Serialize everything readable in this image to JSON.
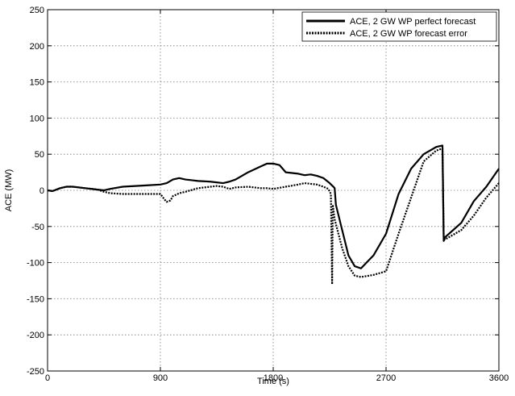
{
  "chart_data": {
    "type": "line",
    "title": "",
    "xlabel": "Time (s)",
    "ylabel": "ACE (MW)",
    "xlim": [
      0,
      3600
    ],
    "ylim": [
      -250,
      250
    ],
    "xticks": [
      0,
      900,
      1800,
      2700,
      3600
    ],
    "yticks": [
      250,
      200,
      150,
      100,
      50,
      0,
      -50,
      -100,
      -150,
      -200,
      -250
    ],
    "grid": true,
    "legend_position": "top-right",
    "series": [
      {
        "name": "ACE, 2 GW WP perfect forecast",
        "style": "solid",
        "color": "#000000",
        "x": [
          0,
          40,
          100,
          150,
          200,
          300,
          400,
          450,
          500,
          600,
          700,
          800,
          900,
          950,
          1000,
          1050,
          1100,
          1150,
          1200,
          1300,
          1400,
          1450,
          1500,
          1550,
          1600,
          1700,
          1750,
          1800,
          1850,
          1900,
          2000,
          2050,
          2100,
          2150,
          2200,
          2250,
          2280,
          2290,
          2300,
          2400,
          2450,
          2500,
          2600,
          2700,
          2800,
          2900,
          3000,
          3100,
          3150,
          3160,
          3170,
          3300,
          3400,
          3500,
          3600
        ],
        "y": [
          0,
          -1,
          3,
          5,
          5,
          3,
          1,
          0,
          2,
          5,
          6,
          7,
          8,
          10,
          15,
          17,
          15,
          14,
          13,
          12,
          10,
          12,
          15,
          20,
          25,
          33,
          37,
          37,
          35,
          25,
          23,
          21,
          22,
          20,
          17,
          10,
          5,
          3,
          -20,
          -90,
          -105,
          -108,
          -90,
          -60,
          -5,
          30,
          50,
          60,
          62,
          -70,
          -65,
          -45,
          -15,
          5,
          30
        ]
      },
      {
        "name": "ACE, 2 GW WP forecast error",
        "style": "dotted",
        "color": "#000000",
        "x": [
          0,
          40,
          100,
          150,
          200,
          300,
          400,
          450,
          500,
          600,
          700,
          800,
          900,
          930,
          950,
          980,
          1000,
          1050,
          1100,
          1200,
          1300,
          1350,
          1400,
          1450,
          1500,
          1600,
          1700,
          1750,
          1800,
          1900,
          2000,
          2050,
          2100,
          2150,
          2200,
          2240,
          2260,
          2270,
          2275,
          2290,
          2350,
          2400,
          2450,
          2500,
          2600,
          2700,
          2800,
          2900,
          3000,
          3100,
          3150,
          3160,
          3170,
          3300,
          3400,
          3500,
          3600
        ],
        "y": [
          0,
          -1,
          3,
          5,
          5,
          3,
          1,
          -2,
          -4,
          -5,
          -5,
          -5,
          -5,
          -12,
          -16,
          -14,
          -8,
          -4,
          -2,
          3,
          5,
          6,
          5,
          2,
          4,
          5,
          3,
          3,
          2,
          5,
          8,
          10,
          9,
          8,
          5,
          2,
          -5,
          -130,
          -20,
          -40,
          -80,
          -105,
          -118,
          -120,
          -117,
          -112,
          -60,
          -10,
          40,
          55,
          58,
          -65,
          -68,
          -55,
          -35,
          -10,
          10
        ]
      }
    ]
  }
}
